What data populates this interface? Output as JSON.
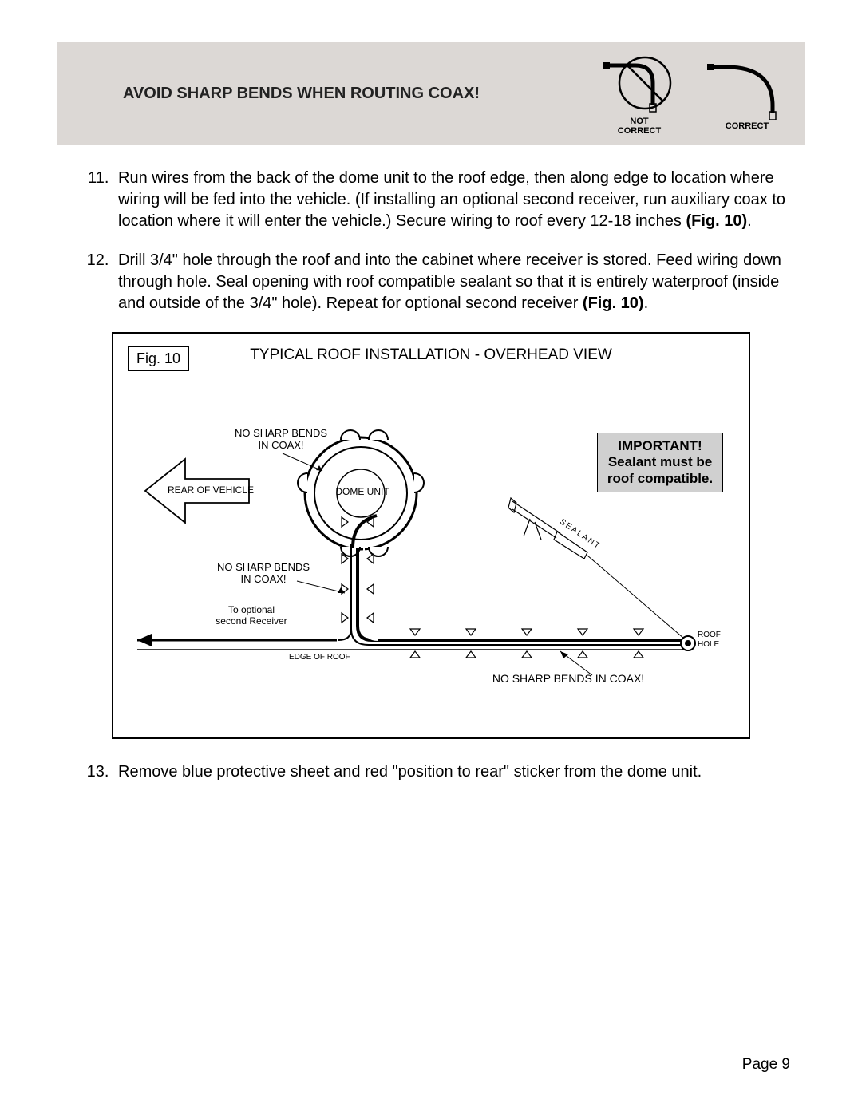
{
  "banner": {
    "headline": "AVOID SHARP BENDS WHEN ROUTING COAX!",
    "not_correct_label": "NOT\nCORRECT",
    "correct_label": "CORRECT",
    "bg_color": "#dcd8d5"
  },
  "instructions": {
    "item11": {
      "num": "11.",
      "text": "Run wires from the back of the dome unit to the roof edge, then along edge to location where wiring will be fed into the vehicle.  (If installing an optional second receiver, run auxiliary coax to location where it will enter the vehicle.)  Secure wiring to roof every 12-18 inches ",
      "fig_ref": "(Fig. 10)"
    },
    "item12": {
      "num": "12.",
      "text": "Drill 3/4\" hole through the roof and into the cabinet where receiver is stored.  Feed wiring down through hole.  Seal opening with roof compatible sealant so that it is entirely waterproof (inside and outside of the 3/4\" hole).  Repeat for optional second receiver ",
      "fig_ref": "(Fig. 10)"
    },
    "item13": {
      "num": "13.",
      "text": "Remove blue protective sheet and red \"position to rear\" sticker from the dome unit."
    }
  },
  "figure": {
    "label": "Fig. 10",
    "title": "TYPICAL ROOF INSTALLATION - OVERHEAD VIEW",
    "important_title": "IMPORTANT!",
    "important_body": "Sealant must be roof compatible.",
    "labels": {
      "no_sharp_top": "NO SHARP BENDS\nIN COAX!",
      "rear_vehicle": "REAR OF VEHICLE",
      "dome_unit": "DOME UNIT",
      "no_sharp_mid": "NO SHARP BENDS\nIN COAX!",
      "to_optional": "To optional\nsecond Receiver",
      "edge_of_roof": "EDGE OF ROOF",
      "no_sharp_bottom": "NO SHARP BENDS IN COAX!",
      "roof_hole": "ROOF\nHOLE",
      "sealant": "SEALANT"
    }
  },
  "page_number": "Page 9",
  "colors": {
    "text": "#000000",
    "banner_bg": "#dcd8d5",
    "important_bg": "#d0d0d0"
  }
}
